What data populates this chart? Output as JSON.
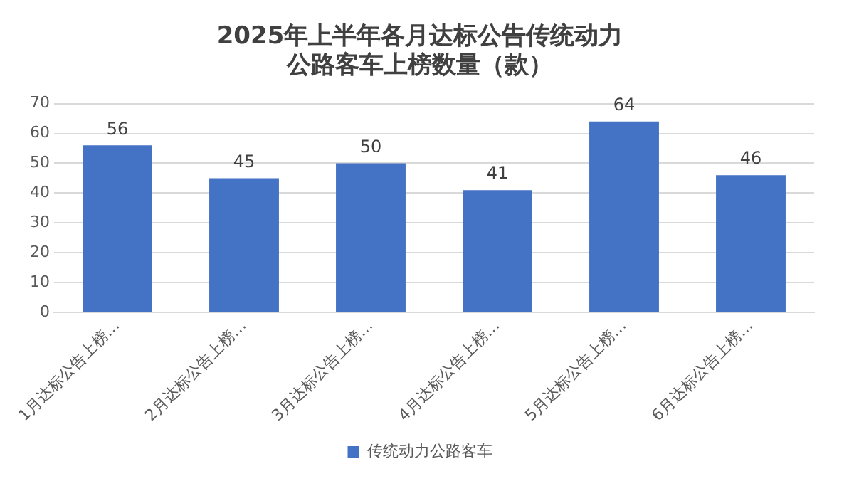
{
  "chart_data": {
    "type": "bar",
    "title": "2025年上半年各月达标公告传统动力公路客车上榜数量（款）",
    "categories": [
      "1月达标公告上榜…",
      "2月达标公告上榜…",
      "3月达标公告上榜…",
      "4月达标公告上榜…",
      "5月达标公告上榜…",
      "6月达标公告上榜…"
    ],
    "series": [
      {
        "name": "传统动力公路客车",
        "color": "#4472c4",
        "values": [
          56,
          45,
          50,
          41,
          64,
          46
        ]
      }
    ],
    "ylim": [
      0,
      70
    ],
    "yticks": [
      0,
      10,
      20,
      30,
      40,
      50,
      60,
      70
    ],
    "grid": "y",
    "legend": "bottom",
    "data_labels": true
  }
}
